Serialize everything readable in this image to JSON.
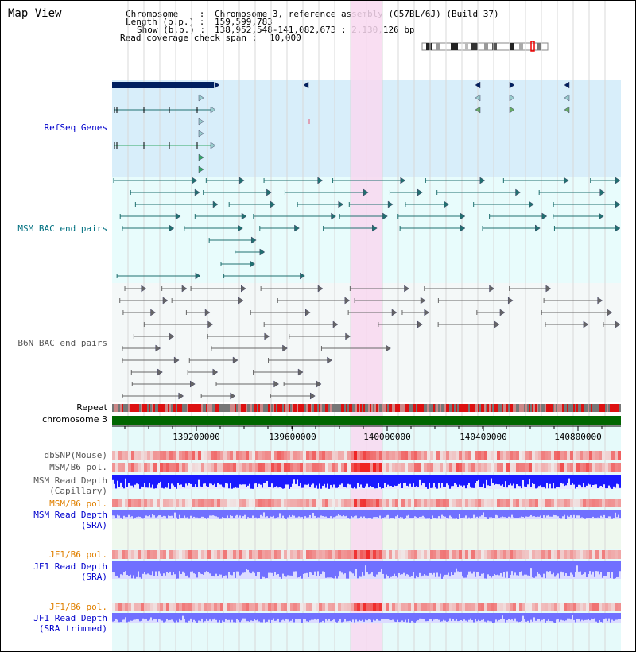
{
  "title": "Map View",
  "info": {
    "chromosome_label": "Chromosome    : ",
    "chromosome_value": "Chromosome 3, reference assembly (C57BL/6J) (Build 37)",
    "length_label": "Length (b.p.) : ",
    "length_value": "159,599,783",
    "show_label": "Show (b.p.) : ",
    "show_value": "138,952,548-141,082,673 : 2,130,126 bp",
    "coverage_label": "Read coverage check span : ",
    "coverage_value": "10,000"
  },
  "tracks": {
    "refseq": "RefSeq Genes",
    "msm_bac": "MSM BAC end pairs",
    "b6n_bac": "B6N BAC end pairs",
    "repeat": "Repeat",
    "chromosome": "chromosome 3",
    "dbsnp": "dbSNP(Mouse)",
    "msm_b6_pol_1": "MSM/B6 pol.",
    "msm_depth_cap_1": "MSM Read Depth",
    "msm_depth_cap_2": "(Capillary)",
    "msm_b6_pol_2": "MSM/B6 pol.",
    "msm_depth_sra_1": "MSM Read Depth",
    "msm_depth_sra_2": "(SRA)",
    "jf1_b6_pol_1": "JF1/B6 pol.",
    "jf1_depth_sra_1": "JF1 Read Depth",
    "jf1_depth_sra_2": "(SRA)",
    "jf1_b6_pol_2": "JF1/B6 pol.",
    "jf1_depth_trim_1": "JF1 Read Depth",
    "jf1_depth_trim_2": "(SRA trimmed)"
  },
  "axis": {
    "ticks": [
      "139200000",
      "139600000",
      "140000000",
      "140400000",
      "140800000"
    ]
  },
  "colors": {
    "highlight": "#f8d8f0",
    "refseq_bg": "#d8eefa",
    "msm_bg": "#e8fcfc",
    "b6n_bg": "#f4f8f8",
    "gene_dark": "#002060",
    "gene_teal": "#207070",
    "chromosome": "#006600",
    "depth_capillary": "#1a1aff",
    "depth_sra": "#7070ff"
  }
}
